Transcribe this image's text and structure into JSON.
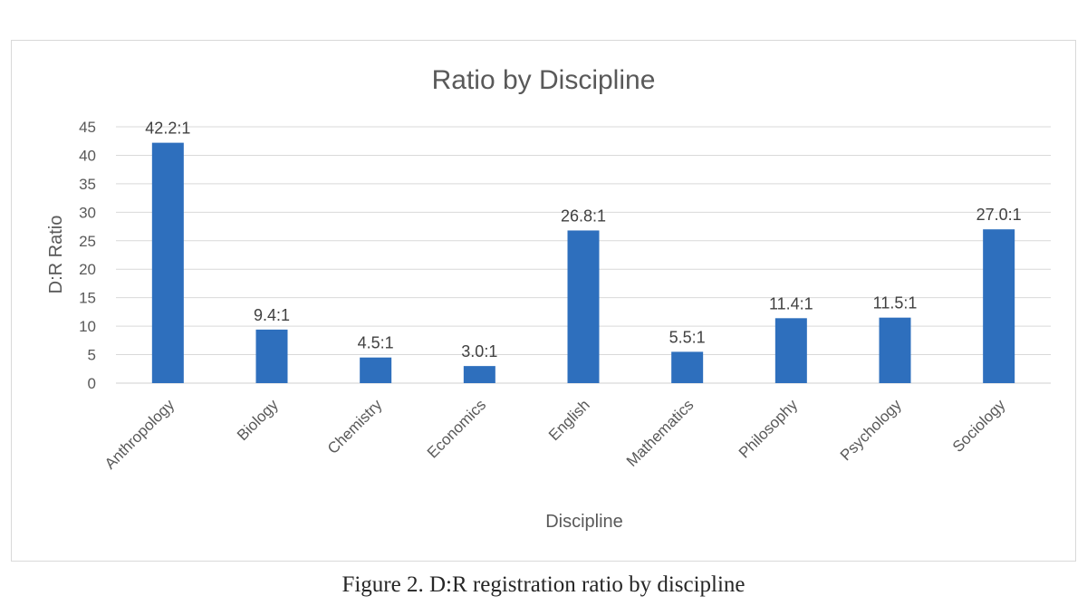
{
  "caption": "Figure 2. D:R registration ratio by discipline",
  "chart_data": {
    "type": "bar",
    "title": "Ratio by Discipline",
    "xlabel": "Discipline",
    "ylabel": "D:R Ratio",
    "ylim": [
      0,
      45
    ],
    "yticks": [
      0,
      5,
      10,
      15,
      20,
      25,
      30,
      35,
      40,
      45
    ],
    "grid": true,
    "legend": "none",
    "bar_color": "#2e6fbd",
    "categories": [
      "Anthropology",
      "Biology",
      "Chemistry",
      "Economics",
      "English",
      "Mathematics",
      "Philosophy",
      "Psychology",
      "Sociology"
    ],
    "values": [
      42.2,
      9.4,
      4.5,
      3.0,
      26.8,
      5.5,
      11.4,
      11.5,
      27.0
    ],
    "data_labels": [
      "42.2:1",
      "9.4:1",
      "4.5:1",
      "3.0:1",
      "26.8:1",
      "5.5:1",
      "11.4:1",
      "11.5:1",
      "27.0:1"
    ]
  }
}
